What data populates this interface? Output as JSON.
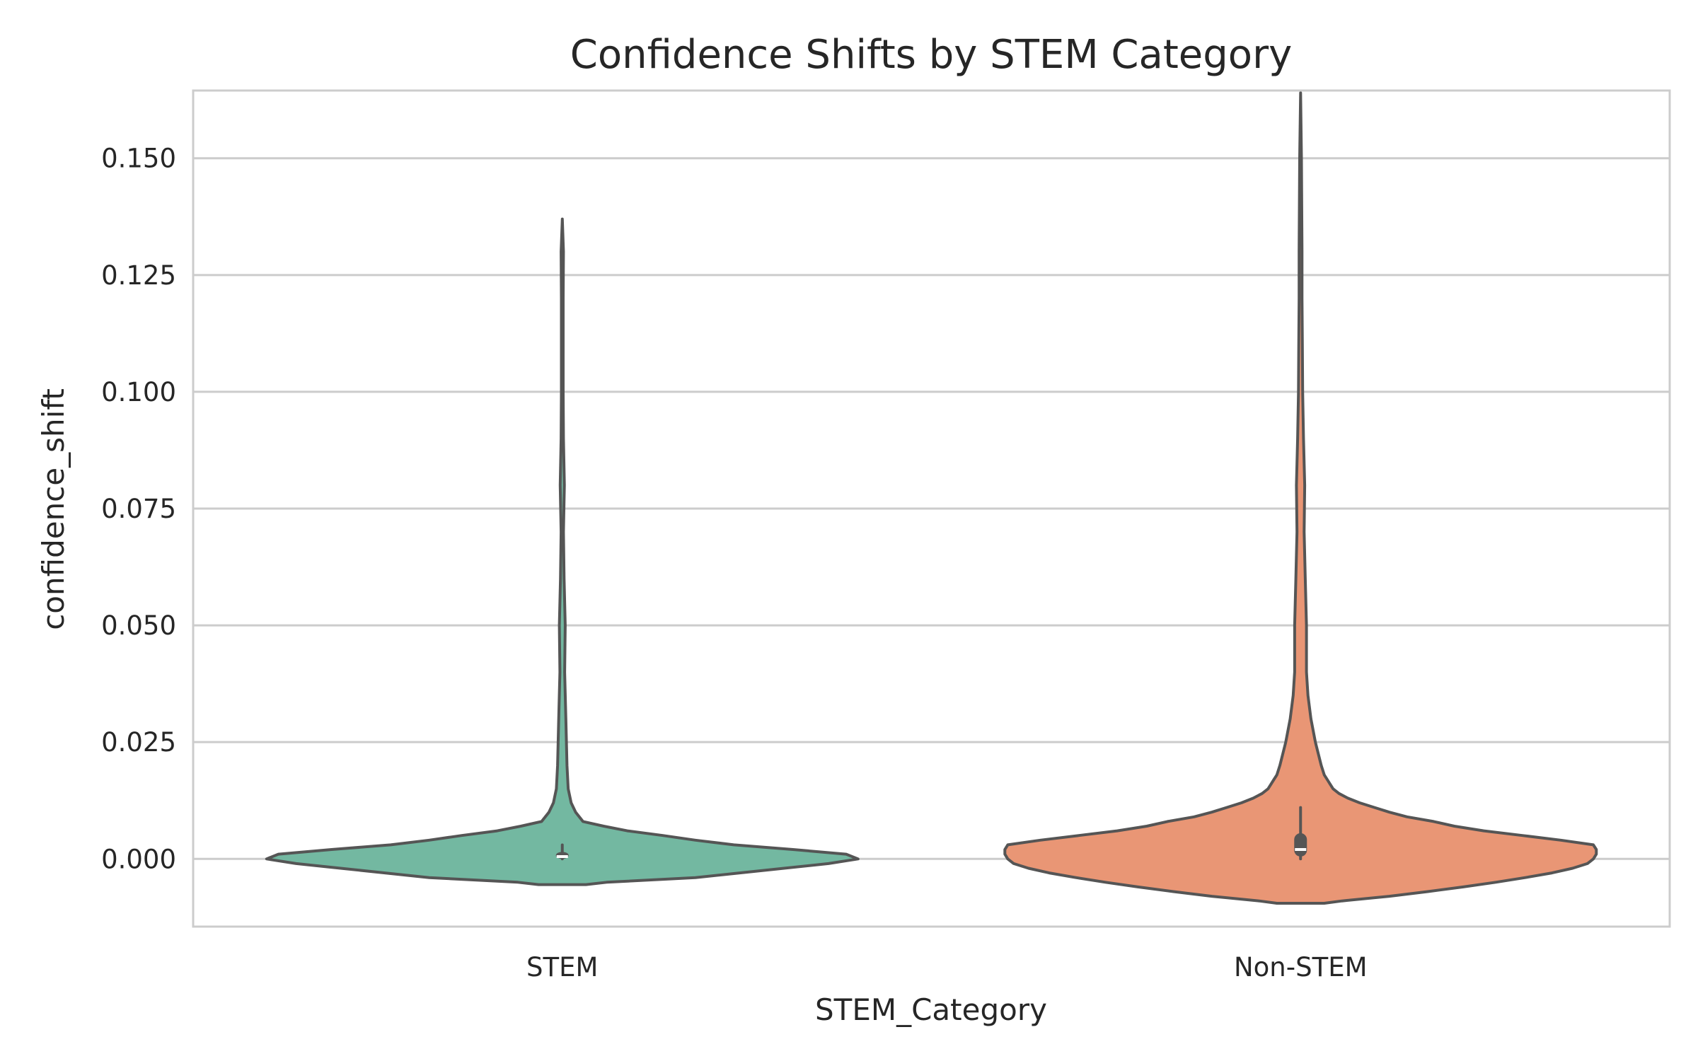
{
  "chart_data": {
    "type": "violin",
    "title": "Confidence Shifts by STEM Category",
    "xlabel": "STEM_Category",
    "ylabel": "confidence_shift",
    "categories": [
      "STEM",
      "Non-STEM"
    ],
    "ylim": [
      -0.0145,
      0.1645
    ],
    "yticks": [
      0.0,
      0.025,
      0.05,
      0.075,
      0.1,
      0.125,
      0.15
    ],
    "ytick_labels": [
      "0.000",
      "0.025",
      "0.050",
      "0.075",
      "0.100",
      "0.125",
      "0.150"
    ],
    "grid": "horizontal",
    "legend": "none",
    "series": [
      {
        "category": "STEM",
        "color": "#73b8a1",
        "min": -0.0055,
        "max": 0.137,
        "q1": 0.0,
        "median": 0.0005,
        "q3": 0.0015,
        "whisker_low": 0.0,
        "whisker_high": 0.003,
        "density": [
          [
            -0.0055,
            0.08
          ],
          [
            -0.005,
            0.15
          ],
          [
            -0.004,
            0.45
          ],
          [
            -0.003,
            0.6
          ],
          [
            -0.002,
            0.75
          ],
          [
            -0.001,
            0.9
          ],
          [
            0.0,
            1.0
          ],
          [
            0.001,
            0.96
          ],
          [
            0.002,
            0.78
          ],
          [
            0.003,
            0.58
          ],
          [
            0.004,
            0.45
          ],
          [
            0.005,
            0.34
          ],
          [
            0.006,
            0.22
          ],
          [
            0.007,
            0.14
          ],
          [
            0.008,
            0.07
          ],
          [
            0.01,
            0.045
          ],
          [
            0.012,
            0.03
          ],
          [
            0.015,
            0.02
          ],
          [
            0.02,
            0.016
          ],
          [
            0.03,
            0.012
          ],
          [
            0.04,
            0.008
          ],
          [
            0.05,
            0.01
          ],
          [
            0.06,
            0.006
          ],
          [
            0.07,
            0.004
          ],
          [
            0.08,
            0.007
          ],
          [
            0.09,
            0.004
          ],
          [
            0.1,
            0.003
          ],
          [
            0.11,
            0.003
          ],
          [
            0.12,
            0.003
          ],
          [
            0.13,
            0.004
          ],
          [
            0.137,
            0.0
          ]
        ]
      },
      {
        "category": "Non-STEM",
        "color": "#e99675",
        "min": -0.0095,
        "max": 0.164,
        "q1": 0.0005,
        "median": 0.002,
        "q3": 0.0055,
        "whisker_low": 0.0,
        "whisker_high": 0.011,
        "density": [
          [
            -0.0095,
            0.08
          ],
          [
            -0.009,
            0.14
          ],
          [
            -0.008,
            0.3
          ],
          [
            -0.007,
            0.43
          ],
          [
            -0.006,
            0.55
          ],
          [
            -0.005,
            0.66
          ],
          [
            -0.004,
            0.76
          ],
          [
            -0.003,
            0.85
          ],
          [
            -0.002,
            0.92
          ],
          [
            -0.001,
            0.97
          ],
          [
            0.0,
            0.99
          ],
          [
            0.001,
            1.0
          ],
          [
            0.002,
            1.0
          ],
          [
            0.003,
            0.99
          ],
          [
            0.004,
            0.88
          ],
          [
            0.005,
            0.75
          ],
          [
            0.006,
            0.62
          ],
          [
            0.007,
            0.52
          ],
          [
            0.008,
            0.45
          ],
          [
            0.009,
            0.36
          ],
          [
            0.01,
            0.3
          ],
          [
            0.011,
            0.25
          ],
          [
            0.012,
            0.2
          ],
          [
            0.013,
            0.16
          ],
          [
            0.014,
            0.13
          ],
          [
            0.015,
            0.11
          ],
          [
            0.016,
            0.1
          ],
          [
            0.017,
            0.09
          ],
          [
            0.018,
            0.08
          ],
          [
            0.02,
            0.07
          ],
          [
            0.025,
            0.05
          ],
          [
            0.03,
            0.035
          ],
          [
            0.035,
            0.025
          ],
          [
            0.04,
            0.02
          ],
          [
            0.05,
            0.02
          ],
          [
            0.06,
            0.016
          ],
          [
            0.07,
            0.012
          ],
          [
            0.08,
            0.014
          ],
          [
            0.09,
            0.01
          ],
          [
            0.1,
            0.007
          ],
          [
            0.11,
            0.006
          ],
          [
            0.12,
            0.005
          ],
          [
            0.13,
            0.005
          ],
          [
            0.14,
            0.004
          ],
          [
            0.15,
            0.003
          ],
          [
            0.164,
            0.0
          ]
        ]
      }
    ]
  }
}
